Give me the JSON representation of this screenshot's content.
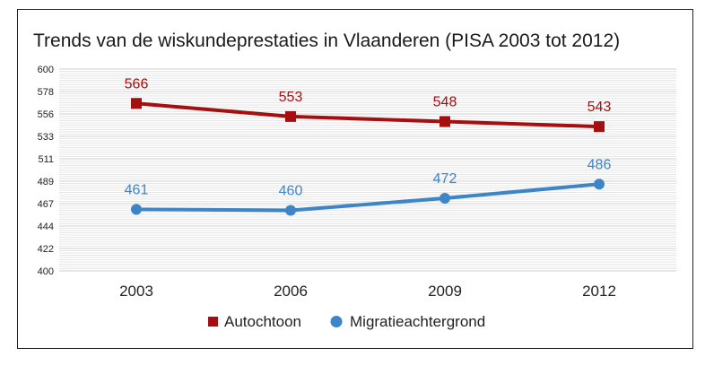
{
  "chart_data": {
    "type": "line",
    "title": "Trends van de wiskundeprestaties in Vlaanderen (PISA 2003 tot 2012)",
    "categories": [
      "2003",
      "2006",
      "2009",
      "2012"
    ],
    "yticks": [
      "600",
      "578",
      "556",
      "533",
      "511",
      "489",
      "467",
      "444",
      "422",
      "400"
    ],
    "ylim": [
      400,
      600
    ],
    "grid": true,
    "legend_position": "bottom",
    "series": [
      {
        "name": "Autochtoon",
        "color": "#a50f0f",
        "marker": "square",
        "values": [
          566,
          553,
          548,
          543
        ]
      },
      {
        "name": "Migratieachtergrond",
        "color": "#3d85c6",
        "marker": "circle",
        "values": [
          461,
          460,
          472,
          486
        ]
      }
    ]
  }
}
